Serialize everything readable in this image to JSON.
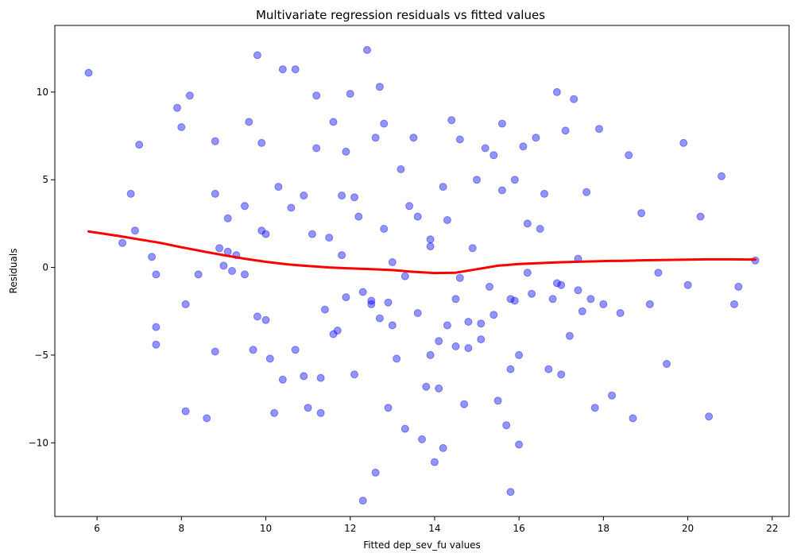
{
  "chart_data": {
    "type": "scatter",
    "title": "Multivariate regression residuals vs fitted values",
    "xlabel": "Fitted dep_sev_fu values",
    "ylabel": "Residuals",
    "xlim": [
      5.0,
      22.4
    ],
    "ylim": [
      -14.2,
      13.8
    ],
    "xticks": [
      {
        "value": 6,
        "label": "6"
      },
      {
        "value": 8,
        "label": "8"
      },
      {
        "value": 10,
        "label": "10"
      },
      {
        "value": 12,
        "label": "12"
      },
      {
        "value": 14,
        "label": "14"
      },
      {
        "value": 16,
        "label": "16"
      },
      {
        "value": 18,
        "label": "18"
      },
      {
        "value": 20,
        "label": "20"
      },
      {
        "value": 22,
        "label": "22"
      }
    ],
    "yticks": [
      {
        "value": -10,
        "label": "−10"
      },
      {
        "value": -5,
        "label": "−5"
      },
      {
        "value": 0,
        "label": "0"
      },
      {
        "value": 5,
        "label": "5"
      },
      {
        "value": 10,
        "label": "10"
      }
    ],
    "grid": false,
    "point_color": "#0000ff",
    "point_opacity": 0.42,
    "line_color": "#ff0000",
    "series": [
      {
        "type": "scatter",
        "x": [
          5.8,
          6.6,
          6.8,
          6.9,
          7.0,
          7.3,
          7.4,
          7.4,
          7.4,
          7.9,
          8.0,
          8.1,
          8.1,
          8.2,
          8.4,
          8.6,
          8.8,
          8.8,
          8.8,
          8.9,
          9.0,
          9.1,
          9.1,
          9.2,
          9.3,
          9.5,
          9.5,
          9.6,
          9.7,
          9.8,
          9.9,
          9.9,
          10.0,
          10.0,
          10.1,
          10.2,
          10.3,
          10.4,
          10.6,
          10.7,
          10.7,
          10.9,
          11.0,
          11.1,
          11.2,
          11.2,
          11.3,
          11.4,
          11.5,
          11.6,
          11.7,
          11.8,
          11.8,
          11.9,
          12.0,
          12.1,
          12.2,
          12.3,
          12.4,
          12.5,
          12.6,
          12.6,
          12.7,
          12.8,
          12.8,
          12.9,
          13.0,
          13.1,
          13.2,
          13.3,
          13.4,
          13.5,
          13.6,
          13.7,
          13.8,
          13.9,
          13.9,
          14.0,
          14.1,
          14.2,
          14.2,
          14.3,
          14.4,
          14.5,
          14.6,
          14.7,
          14.8,
          14.9,
          15.0,
          15.1,
          15.2,
          15.3,
          15.4,
          15.5,
          15.6,
          15.7,
          15.8,
          15.8,
          15.9,
          16.0,
          16.1,
          16.2,
          16.3,
          16.4,
          16.6,
          16.7,
          16.9,
          17.0,
          17.1,
          17.2,
          17.3,
          17.4,
          17.5,
          17.6,
          17.7,
          17.8,
          17.9,
          18.0,
          18.2,
          18.4,
          18.6,
          18.7,
          18.9,
          19.1,
          19.3,
          19.5,
          19.9,
          20.0,
          20.3,
          20.5,
          20.8,
          21.1,
          21.2,
          21.6,
          9.8,
          10.4,
          11.6,
          12.9,
          13.3,
          14.1,
          14.5,
          15.4,
          16.0,
          16.9,
          17.4,
          12.7,
          13.9,
          14.8,
          15.6,
          15.8,
          16.2,
          12.3,
          12.5,
          11.9,
          14.3,
          15.1,
          16.5,
          17.0,
          13.6,
          12.1,
          10.9,
          11.3,
          13.0,
          15.9,
          16.8,
          14.6
        ],
        "y": [
          11.1,
          1.4,
          4.2,
          2.1,
          7.0,
          0.6,
          -0.4,
          -3.4,
          -4.4,
          9.1,
          8.0,
          -2.1,
          -8.2,
          9.8,
          -0.4,
          -8.6,
          7.2,
          4.2,
          -4.8,
          1.1,
          0.1,
          0.9,
          2.8,
          -0.2,
          0.7,
          3.5,
          -0.4,
          8.3,
          -4.7,
          -2.8,
          7.1,
          2.1,
          -3.0,
          1.9,
          -5.2,
          -8.3,
          4.6,
          -6.4,
          3.4,
          11.3,
          -4.7,
          4.1,
          -8.0,
          1.9,
          9.8,
          6.8,
          -8.3,
          -2.4,
          1.7,
          8.3,
          -3.6,
          4.1,
          0.7,
          -1.7,
          9.9,
          -6.1,
          2.9,
          -13.3,
          12.4,
          -1.9,
          7.4,
          -11.7,
          -2.9,
          8.2,
          2.2,
          -8.0,
          0.3,
          -5.2,
          5.6,
          -9.2,
          3.5,
          7.4,
          2.9,
          -9.8,
          -6.8,
          -5.0,
          1.2,
          -11.1,
          -4.2,
          4.6,
          -10.3,
          -3.3,
          8.4,
          -1.8,
          7.3,
          -7.8,
          -4.6,
          1.1,
          5.0,
          -3.2,
          6.8,
          -1.1,
          6.4,
          -7.6,
          8.2,
          -9.0,
          -12.8,
          -5.8,
          5.0,
          -10.1,
          6.9,
          2.5,
          -1.5,
          7.4,
          4.2,
          -5.8,
          10.0,
          -6.1,
          7.8,
          -3.9,
          9.6,
          -1.3,
          -2.5,
          4.3,
          -1.8,
          -8.0,
          7.9,
          -2.1,
          -7.3,
          -2.6,
          6.4,
          -8.6,
          3.1,
          -2.1,
          -0.3,
          -5.5,
          7.1,
          -1.0,
          2.9,
          -8.5,
          5.2,
          -2.1,
          -1.1,
          0.4,
          12.1,
          11.3,
          -3.8,
          -2.0,
          -0.5,
          -6.9,
          -4.5,
          -2.7,
          -5.0,
          -0.9,
          0.5,
          10.3,
          1.6,
          -3.1,
          4.4,
          -1.8,
          -0.3,
          -1.4,
          -2.1,
          6.6,
          2.7,
          -4.1,
          2.2,
          -1.0,
          -2.6,
          4.0,
          -6.2,
          -6.3,
          -3.3,
          -1.9,
          -1.8,
          -0.6
        ]
      },
      {
        "type": "line",
        "name": "lowess",
        "x": [
          5.8,
          6.5,
          7.0,
          7.5,
          8.0,
          8.5,
          9.0,
          9.5,
          10.0,
          10.5,
          11.0,
          11.5,
          12.0,
          12.5,
          13.0,
          13.5,
          14.0,
          14.5,
          15.0,
          15.5,
          16.0,
          16.5,
          17.0,
          17.5,
          18.0,
          18.5,
          19.0,
          19.5,
          20.0,
          20.5,
          21.0,
          21.6
        ],
        "y": [
          2.05,
          1.8,
          1.6,
          1.4,
          1.15,
          0.92,
          0.7,
          0.5,
          0.32,
          0.18,
          0.08,
          0.0,
          -0.05,
          -0.1,
          -0.15,
          -0.25,
          -0.32,
          -0.3,
          -0.1,
          0.1,
          0.2,
          0.25,
          0.3,
          0.33,
          0.36,
          0.38,
          0.41,
          0.43,
          0.45,
          0.46,
          0.46,
          0.45
        ]
      }
    ]
  }
}
